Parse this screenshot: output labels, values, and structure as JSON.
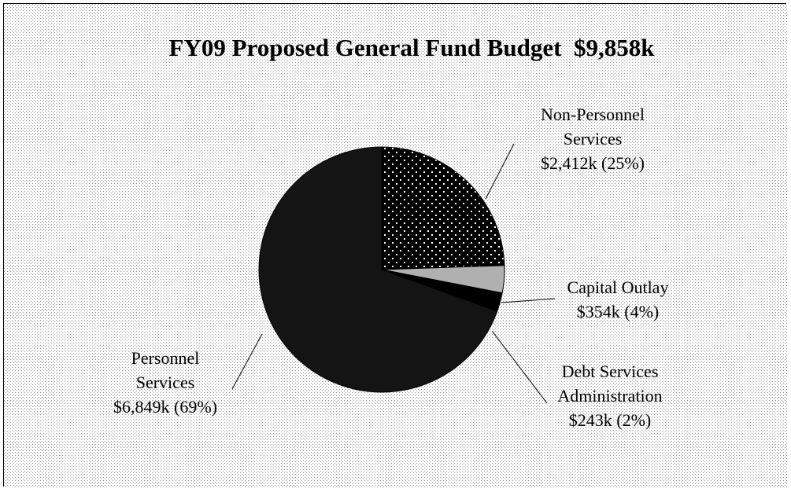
{
  "chart_data": {
    "type": "pie",
    "title": "FY09 Proposed General Fund Budget  $9,858k",
    "slices": [
      {
        "name": "Non-Personnel Services",
        "value": 2412,
        "percent": 25,
        "label_lines": [
          "Non-Personnel",
          "Services",
          "$2,412k (25%)"
        ],
        "fill": "dots"
      },
      {
        "name": "Capital Outlay",
        "value": 354,
        "percent": 4,
        "label_lines": [
          "Capital Outlay",
          "$354k  (4%)"
        ],
        "fill": "#b0b0b0"
      },
      {
        "name": "Debt Services Administration",
        "value": 243,
        "percent": 2,
        "label_lines": [
          "Debt Services",
          "Administration",
          "$243k (2%)"
        ],
        "fill": "#000000"
      },
      {
        "name": "Personnel Services",
        "value": 6849,
        "percent": 69,
        "label_lines": [
          "Personnel",
          "Services",
          "$6,849k (69%)"
        ],
        "fill": "#141414"
      }
    ]
  }
}
